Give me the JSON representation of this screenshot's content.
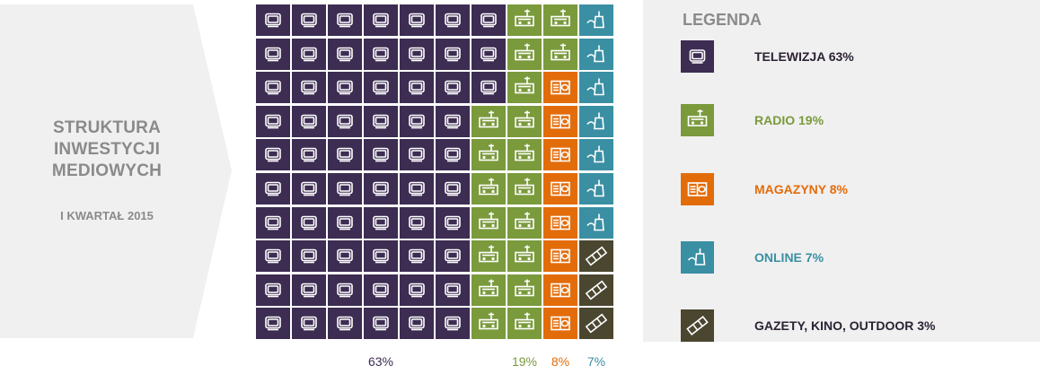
{
  "title": {
    "lines": [
      "STRUKTURA",
      "INWESTYCJI",
      "MEDIOWYCH"
    ],
    "subtitle": "I KWARTAŁ 2015"
  },
  "colors": {
    "tv": "#3d2d52",
    "radio": "#7a9a3c",
    "magazines": "#e36c0a",
    "online": "#3a8fa3",
    "other": "#4a4630",
    "panel": "#f0f0f0",
    "title_text": "#8a8a8a"
  },
  "chart_data": {
    "type": "waffle",
    "title": "STRUKTURA INWESTYCJI MEDIOWYCH",
    "subtitle": "I KWARTAŁ 2015",
    "rows": 10,
    "cols": 10,
    "fill_order": "column-major, top to bottom, left to right",
    "categories": [
      {
        "key": "tv",
        "name": "TELEWIZJA",
        "value": 63,
        "icon": "tv-icon"
      },
      {
        "key": "radio",
        "name": "RADIO",
        "value": 19,
        "icon": "radio-icon"
      },
      {
        "key": "magazines",
        "name": "MAGAZYNY",
        "value": 8,
        "icon": "magazine-icon"
      },
      {
        "key": "online",
        "name": "ONLINE",
        "value": 7,
        "icon": "mouse-icon"
      },
      {
        "key": "other",
        "name": "GAZETY, KINO, OUTDOOR",
        "value": 3,
        "icon": "film-icon"
      }
    ],
    "bottom_labels": [
      {
        "key": "tv",
        "text": "63%"
      },
      {
        "key": "radio",
        "text": "19%"
      },
      {
        "key": "magazines",
        "text": "8%"
      },
      {
        "key": "online",
        "text": "7%"
      }
    ]
  },
  "legend": {
    "title": "LEGENDA",
    "items": [
      {
        "key": "tv",
        "label": "TELEWIZJA 63%",
        "icon": "tv-icon"
      },
      {
        "key": "radio",
        "label": "RADIO 19%",
        "icon": "radio-icon"
      },
      {
        "key": "magazines",
        "label": "MAGAZYNY 8%",
        "icon": "magazine-icon"
      },
      {
        "key": "online",
        "label": "ONLINE 7%",
        "icon": "mouse-icon"
      },
      {
        "key": "other",
        "label": "GAZETY, KINO, OUTDOOR 3%",
        "icon": "film-icon"
      }
    ]
  }
}
